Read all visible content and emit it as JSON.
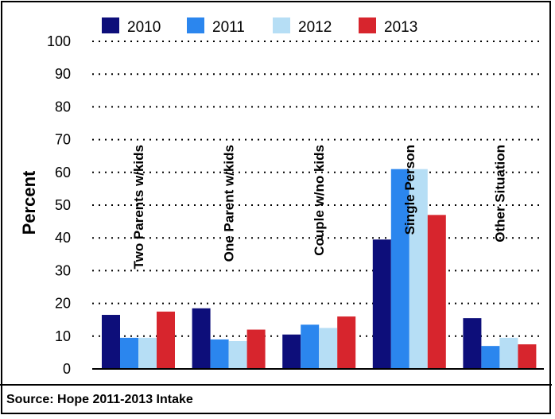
{
  "chart_data": {
    "type": "bar",
    "title": "",
    "xlabel": "",
    "ylabel": "Percent",
    "ylim": [
      0,
      100
    ],
    "yticks": [
      0,
      10,
      20,
      30,
      40,
      50,
      60,
      70,
      80,
      90,
      100
    ],
    "grid": true,
    "legend_position": "top",
    "categories": [
      "Two Parents w/kids",
      "One Parent w/kids",
      "Couple w/no kids",
      "Single Person",
      "Other Situation"
    ],
    "series": [
      {
        "name": "2010",
        "color": "#0d0e7a",
        "values": [
          16.5,
          18.5,
          10.5,
          39.5,
          15.5
        ]
      },
      {
        "name": "2011",
        "color": "#2b86ee",
        "values": [
          9.5,
          9,
          13.5,
          61,
          7
        ]
      },
      {
        "name": "2012",
        "color": "#b6def5",
        "values": [
          9.5,
          8.5,
          12.5,
          61,
          9.5
        ]
      },
      {
        "name": "2013",
        "color": "#d7252d",
        "values": [
          17.5,
          12,
          16,
          47,
          7.5
        ]
      }
    ],
    "source": "Source: Hope 2011-2013 Intake"
  }
}
